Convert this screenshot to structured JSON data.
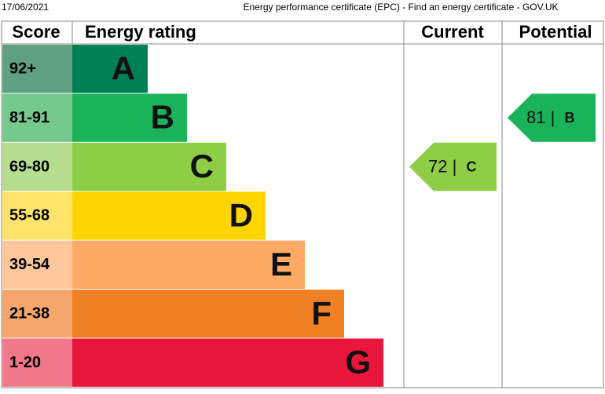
{
  "header": {
    "date": "17/06/2021",
    "title": "Energy performance certificate (EPC) - Find an energy certificate - GOV.UK"
  },
  "table": {
    "headers": [
      "Score",
      "Energy rating",
      "Current",
      "Potential"
    ],
    "bands": [
      {
        "score": "92+",
        "letter": "A",
        "color": "#008054",
        "score_color": "#5f9f82"
      },
      {
        "score": "81-91",
        "letter": "B",
        "color": "#19b459",
        "score_color": "#75c98d"
      },
      {
        "score": "69-80",
        "letter": "C",
        "color": "#8dce46",
        "score_color": "#b6dd8e"
      },
      {
        "score": "55-68",
        "letter": "D",
        "color": "#ffd500",
        "score_color": "#ffe46b"
      },
      {
        "score": "39-54",
        "letter": "E",
        "color": "#fcaa65",
        "score_color": "#fdc79b"
      },
      {
        "score": "21-38",
        "letter": "F",
        "color": "#ef8023",
        "score_color": "#f4a66c"
      },
      {
        "score": "1-20",
        "letter": "G",
        "color": "#e9153b",
        "score_color": "#f1778a"
      }
    ],
    "current": {
      "score": 72,
      "separator": "|",
      "letter": "C",
      "band": 2,
      "color": "#8dce46"
    },
    "potential": {
      "score": 81,
      "separator": "|",
      "letter": "B",
      "band": 1,
      "color": "#19b459"
    }
  }
}
